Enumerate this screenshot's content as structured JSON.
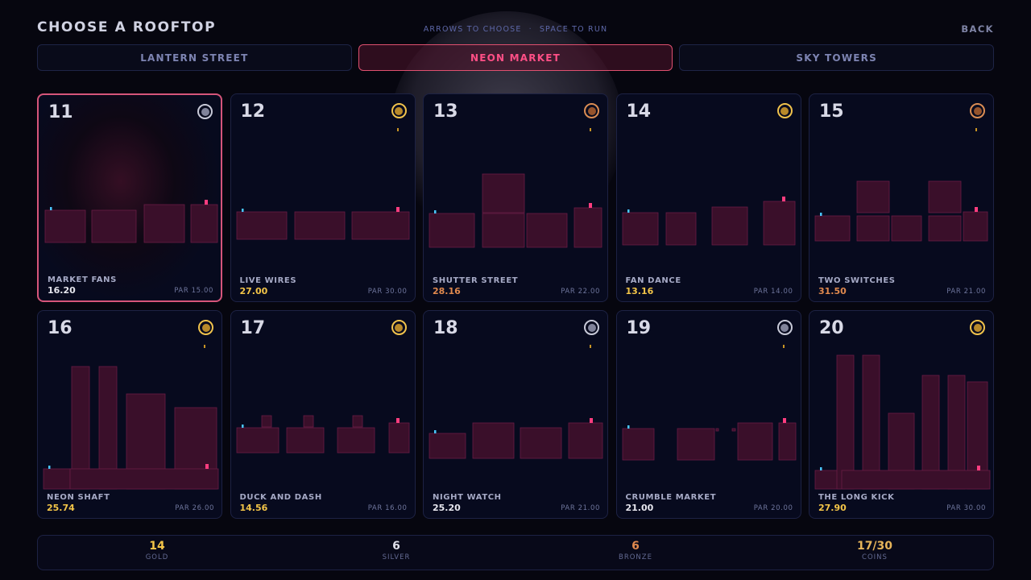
{
  "header": {
    "title": "CHOOSE A ROOFTOP",
    "hint_left": "ARROWS TO CHOOSE",
    "hint_sep": "·",
    "hint_right": "SPACE TO RUN",
    "back_label": "BACK"
  },
  "tabs": [
    {
      "label": "LANTERN STREET",
      "active": false
    },
    {
      "label": "NEON MARKET",
      "active": true
    },
    {
      "label": "SKY TOWERS",
      "active": false
    }
  ],
  "colors": {
    "accent": "#ff4f86",
    "gold": "#f3c548",
    "silver": "#c8cad8",
    "bronze": "#e0894e",
    "building": "#3a0f2a",
    "building_edge": "#6a1c45",
    "start_marker": "#49c6ff",
    "goal_marker": "#ff3d7f"
  },
  "levels": [
    {
      "num": "11",
      "name": "MARKET FANS",
      "time": "16.20",
      "par": "PAR 15.00",
      "medal": "silver",
      "time_color": "white",
      "selected": true,
      "mini_dot": false,
      "blocks": [
        [
          8,
          143,
          50,
          40
        ],
        [
          66,
          143,
          55,
          40
        ],
        [
          131,
          136,
          50,
          47
        ],
        [
          189,
          136,
          33,
          47
        ]
      ]
    },
    {
      "num": "12",
      "name": "LIVE WIRES",
      "time": "27.00",
      "par": "PAR 30.00",
      "medal": "gold",
      "time_color": "gold",
      "selected": false,
      "mini_dot": true,
      "blocks": [
        [
          7,
          146,
          62,
          34
        ],
        [
          79,
          146,
          62,
          34
        ],
        [
          150,
          146,
          71,
          34
        ]
      ]
    },
    {
      "num": "13",
      "name": "SHUTTER STREET",
      "time": "28.16",
      "par": "PAR 22.00",
      "medal": "bronze",
      "time_color": "bronze",
      "selected": false,
      "mini_dot": true,
      "blocks": [
        [
          7,
          148,
          56,
          42
        ],
        [
          73,
          99,
          52,
          48
        ],
        [
          73,
          148,
          52,
          42
        ],
        [
          128,
          148,
          50,
          42
        ],
        [
          187,
          141,
          34,
          49
        ]
      ]
    },
    {
      "num": "14",
      "name": "FAN DANCE",
      "time": "13.16",
      "par": "PAR 14.00",
      "medal": "gold",
      "time_color": "gold",
      "selected": false,
      "mini_dot": false,
      "blocks": [
        [
          7,
          147,
          44,
          40
        ],
        [
          61,
          147,
          37,
          40
        ],
        [
          118,
          140,
          44,
          47
        ],
        [
          182,
          133,
          39,
          54
        ]
      ]
    },
    {
      "num": "15",
      "name": "TWO SWITCHES",
      "time": "31.50",
      "par": "PAR 21.00",
      "medal": "bronze",
      "time_color": "bronze",
      "selected": false,
      "mini_dot": true,
      "blocks": [
        [
          7,
          151,
          43,
          31
        ],
        [
          59,
          108,
          40,
          39
        ],
        [
          59,
          151,
          40,
          31
        ],
        [
          102,
          151,
          37,
          31
        ],
        [
          148,
          108,
          40,
          39
        ],
        [
          148,
          151,
          40,
          31
        ],
        [
          191,
          146,
          30,
          36
        ]
      ]
    },
    {
      "num": "16",
      "name": "NEON SHAFT",
      "time": "25.74",
      "par": "PAR 26.00",
      "medal": "gold",
      "time_color": "gold",
      "selected": false,
      "mini_dot": true,
      "blocks": [
        [
          7,
          196,
          33,
          25
        ],
        [
          42,
          69,
          22,
          152
        ],
        [
          76,
          69,
          22,
          152
        ],
        [
          110,
          103,
          48,
          118
        ],
        [
          170,
          120,
          52,
          101
        ],
        [
          40,
          196,
          184,
          25
        ]
      ]
    },
    {
      "num": "17",
      "name": "DUCK AND DASH",
      "time": "14.56",
      "par": "PAR 16.00",
      "medal": "gold",
      "time_color": "gold",
      "selected": false,
      "mini_dot": false,
      "blocks": [
        [
          7,
          145,
          52,
          31
        ],
        [
          38,
          130,
          12,
          14
        ],
        [
          69,
          145,
          46,
          31
        ],
        [
          90,
          130,
          12,
          14
        ],
        [
          132,
          145,
          46,
          31
        ],
        [
          151,
          130,
          12,
          14
        ],
        [
          196,
          139,
          25,
          37
        ]
      ]
    },
    {
      "num": "18",
      "name": "NIGHT WATCH",
      "time": "25.20",
      "par": "PAR 21.00",
      "medal": "silver",
      "time_color": "white",
      "selected": false,
      "mini_dot": true,
      "blocks": [
        [
          7,
          152,
          45,
          31
        ],
        [
          61,
          139,
          51,
          44
        ],
        [
          120,
          145,
          51,
          38
        ],
        [
          180,
          139,
          42,
          44
        ]
      ]
    },
    {
      "num": "19",
      "name": "CRUMBLE MARKET",
      "time": "21.00",
      "par": "PAR 20.00",
      "medal": "silver",
      "time_color": "white",
      "selected": false,
      "mini_dot": true,
      "blocks": [
        [
          7,
          146,
          39,
          39
        ],
        [
          75,
          146,
          46,
          39
        ],
        [
          123,
          146,
          3,
          3
        ],
        [
          143,
          146,
          4,
          3
        ],
        [
          150,
          139,
          43,
          46
        ],
        [
          201,
          139,
          21,
          46
        ]
      ]
    },
    {
      "num": "20",
      "name": "THE LONG KICK",
      "time": "27.90",
      "par": "PAR 30.00",
      "medal": "gold",
      "time_color": "gold",
      "selected": false,
      "mini_dot": false,
      "blocks": [
        [
          7,
          198,
          33,
          23
        ],
        [
          34,
          55,
          21,
          166
        ],
        [
          66,
          55,
          21,
          166
        ],
        [
          98,
          127,
          32,
          94
        ],
        [
          140,
          80,
          21,
          141
        ],
        [
          172,
          80,
          21,
          141
        ],
        [
          196,
          88,
          25,
          133
        ],
        [
          40,
          198,
          184,
          23
        ]
      ]
    }
  ],
  "footer": {
    "gold_value": "14",
    "gold_label": "GOLD",
    "silver_value": "6",
    "silver_label": "SILVER",
    "bronze_value": "6",
    "bronze_label": "BRONZE",
    "coins_value": "17/30",
    "coins_label": "COINS"
  }
}
